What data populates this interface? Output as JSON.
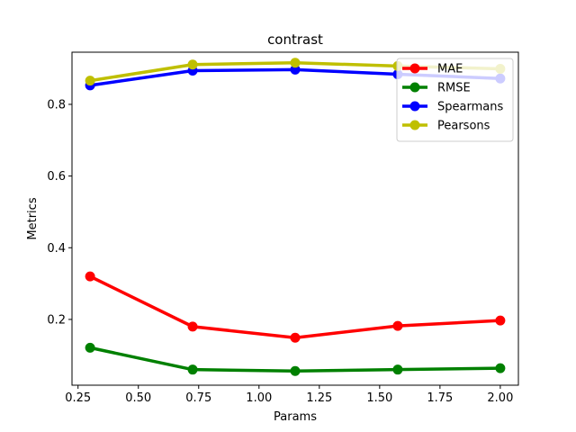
{
  "chart_data": {
    "type": "line",
    "title": "contrast",
    "xlabel": "Params",
    "ylabel": "Metrics",
    "x": [
      0.3,
      0.725,
      1.15,
      1.575,
      2.0
    ],
    "xlim": [
      0.225,
      2.075
    ],
    "ylim": [
      0.0165,
      0.9455
    ],
    "xticks": [
      0.25,
      0.5,
      0.75,
      1.0,
      1.25,
      1.5,
      1.75,
      2.0
    ],
    "xtick_labels": [
      "0.25",
      "0.50",
      "0.75",
      "1.00",
      "1.25",
      "1.50",
      "1.75",
      "2.00"
    ],
    "yticks": [
      0.2,
      0.4,
      0.6,
      0.8
    ],
    "ytick_labels": [
      "0.2",
      "0.4",
      "0.6",
      "0.8"
    ],
    "grid": false,
    "legend_position": "top-right",
    "series": [
      {
        "name": "MAE",
        "color": "#ff0000",
        "values": [
          0.32,
          0.18,
          0.149,
          0.182,
          0.197
        ]
      },
      {
        "name": "RMSE",
        "color": "#008000",
        "values": [
          0.121,
          0.06,
          0.056,
          0.06,
          0.064
        ]
      },
      {
        "name": "Spearmans",
        "color": "#0000ff",
        "values": [
          0.853,
          0.894,
          0.897,
          0.884,
          0.872
        ]
      },
      {
        "name": "Pearsons",
        "color": "#bfbf00",
        "values": [
          0.866,
          0.911,
          0.916,
          0.907,
          0.899
        ]
      }
    ]
  }
}
